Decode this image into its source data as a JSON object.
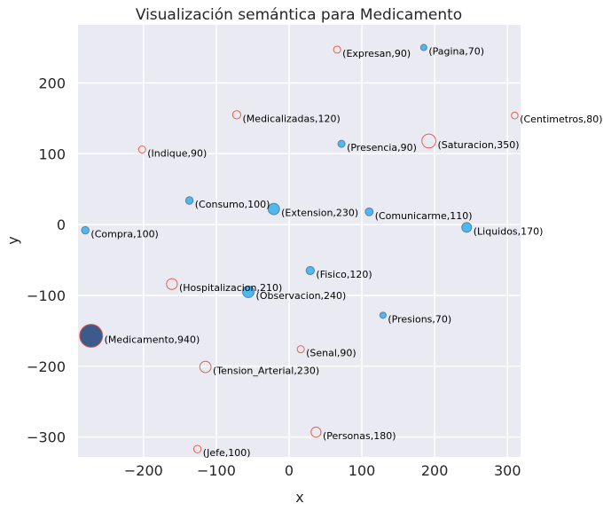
{
  "chart_data": {
    "type": "scatter",
    "title": "Visualización semántica para Medicamento",
    "xlabel": "x",
    "ylabel": "y",
    "xlim": [
      -290,
      318
    ],
    "ylim": [
      -328,
      282
    ],
    "xticks": [
      -200,
      -100,
      0,
      100,
      200,
      300
    ],
    "yticks": [
      -300,
      -200,
      -100,
      0,
      100,
      200
    ],
    "grid": true,
    "colors": {
      "background": "#eaeaf2",
      "grid": "#ffffff",
      "filled_point": "#4fb8ee",
      "filled_edge": "#5a7fa6",
      "hollow_edge": "#e8604c",
      "focus_point": "#3d5a8c",
      "focus_edge": "#d9544a"
    },
    "points": [
      {
        "label": "(Expresan,90)",
        "x": 66,
        "y": 247,
        "size": 90,
        "style": "hollow"
      },
      {
        "label": "(Pagina,70)",
        "x": 185,
        "y": 250,
        "size": 70,
        "style": "filled"
      },
      {
        "label": "(Centimetros,80)",
        "x": 310,
        "y": 154,
        "size": 80,
        "style": "hollow"
      },
      {
        "label": "(Medicalizadas,120)",
        "x": -72,
        "y": 155,
        "size": 120,
        "style": "hollow"
      },
      {
        "label": "(Saturacion,350)",
        "x": 192,
        "y": 118,
        "size": 350,
        "style": "hollow"
      },
      {
        "label": "(Presencia,90)",
        "x": 72,
        "y": 114,
        "size": 90,
        "style": "filled"
      },
      {
        "label": "(Indique,90)",
        "x": -202,
        "y": 106,
        "size": 90,
        "style": "hollow"
      },
      {
        "label": "(Consumo,100)",
        "x": -137,
        "y": 34,
        "size": 100,
        "style": "filled"
      },
      {
        "label": "(Extension,230)",
        "x": -21,
        "y": 22,
        "size": 230,
        "style": "filled"
      },
      {
        "label": "(Comunicarme,110)",
        "x": 110,
        "y": 18,
        "size": 110,
        "style": "filled"
      },
      {
        "label": "(Liquidos,170)",
        "x": 244,
        "y": -4,
        "size": 170,
        "style": "filled"
      },
      {
        "label": "(Compra,100)",
        "x": -280,
        "y": -8,
        "size": 100,
        "style": "filled"
      },
      {
        "label": "(Fisico,120)",
        "x": 29,
        "y": -65,
        "size": 120,
        "style": "filled"
      },
      {
        "label": "(Hospitalizacion,210)",
        "x": -161,
        "y": -84,
        "size": 210,
        "style": "hollow"
      },
      {
        "label": "(Observacion,240)",
        "x": -56,
        "y": -95,
        "size": 240,
        "style": "filled"
      },
      {
        "label": "(Presions,70)",
        "x": 129,
        "y": -128,
        "size": 70,
        "style": "filled"
      },
      {
        "label": "(Medicamento,940)",
        "x": -272,
        "y": -157,
        "size": 940,
        "style": "focus"
      },
      {
        "label": "(Senal,90)",
        "x": 16,
        "y": -176,
        "size": 90,
        "style": "hollow"
      },
      {
        "label": "(Tension_Arterial,230)",
        "x": -115,
        "y": -201,
        "size": 230,
        "style": "hollow"
      },
      {
        "label": "(Personas,180)",
        "x": 37,
        "y": -293,
        "size": 180,
        "style": "hollow"
      },
      {
        "label": "(Jefe,100)",
        "x": -126,
        "y": -317,
        "size": 100,
        "style": "hollow"
      }
    ]
  }
}
